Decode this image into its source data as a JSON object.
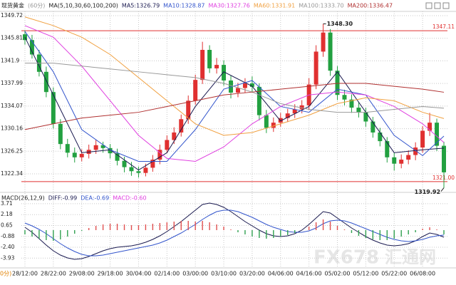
{
  "chart_data": [
    {
      "type": "candlestick",
      "title": "现货黄金",
      "subtitle": "(60分)",
      "indicator": "MA(5,10,30,60,100,200)",
      "categories": [
        "28/12:00",
        null,
        null,
        null,
        "28/22:00",
        null,
        null,
        null,
        "29/08:00",
        null,
        null,
        null,
        "29/18:00",
        null,
        null,
        null,
        "30/04:00",
        null,
        null,
        null,
        "02/14:00",
        null,
        null,
        null,
        "03/00:00",
        null,
        null,
        null,
        "03/10:00",
        null,
        null,
        null,
        "03/20:00",
        null,
        null,
        null,
        "04/06:00",
        null,
        null,
        null,
        "04/16:00",
        null,
        null,
        null,
        "05/02:00",
        null,
        null,
        null,
        "05/12:00",
        null,
        null,
        null,
        "05/22:00",
        null,
        null,
        null,
        "06/08:00",
        null,
        null,
        null
      ],
      "open": [
        1346.5,
        1345.5,
        1343.0,
        1340.0,
        1336.5,
        1331.0,
        1327.5,
        1326.0,
        1325.2,
        1325.8,
        1326.5,
        1327.3,
        1326.8,
        1325.9,
        1324.6,
        1323.5,
        1322.8,
        1322.5,
        1323.4,
        1324.8,
        1326.5,
        1328.2,
        1329.5,
        1331.8,
        1335.0,
        1338.6,
        1343.8,
        1340.6,
        1341.2,
        1338.5,
        1336.4,
        1337.2,
        1338.0,
        1337.4,
        1332.5,
        1330.3,
        1331.2,
        1332.0,
        1332.8,
        1333.5,
        1334.2,
        1337.8,
        1343.5,
        1346.8,
        1340.2,
        1336.0,
        1335.2,
        1333.8,
        1333.0,
        1331.4,
        1329.5,
        1328.0,
        1325.2,
        1324.1,
        1324.8,
        1325.6,
        1326.9,
        1329.8,
        1331.2,
        1327.2
      ],
      "high": [
        1347.2,
        1346.4,
        1343.8,
        1340.9,
        1337.3,
        1331.8,
        1328.4,
        1326.9,
        1326.6,
        1327.4,
        1328.2,
        1327.9,
        1327.5,
        1326.7,
        1325.3,
        1324.4,
        1323.6,
        1324.1,
        1325.6,
        1327.4,
        1329.0,
        1330.4,
        1332.6,
        1335.9,
        1339.5,
        1345.2,
        1344.6,
        1342.4,
        1342.0,
        1339.3,
        1338.1,
        1338.9,
        1339.2,
        1338.0,
        1333.4,
        1332.1,
        1332.9,
        1333.6,
        1334.4,
        1335.1,
        1338.9,
        1344.6,
        1348.3,
        1347.4,
        1341.0,
        1336.9,
        1336.1,
        1334.7,
        1333.8,
        1332.2,
        1330.3,
        1328.7,
        1326.0,
        1325.7,
        1326.4,
        1327.8,
        1330.6,
        1332.9,
        1331.9,
        1327.9
      ],
      "low": [
        1344.7,
        1342.3,
        1339.2,
        1335.6,
        1330.2,
        1326.6,
        1325.2,
        1324.3,
        1324.5,
        1325.0,
        1325.8,
        1326.0,
        1325.0,
        1323.8,
        1322.6,
        1322.0,
        1321.7,
        1321.9,
        1322.7,
        1324.0,
        1325.9,
        1327.5,
        1328.8,
        1331.0,
        1334.3,
        1337.9,
        1339.8,
        1339.7,
        1337.6,
        1335.4,
        1335.6,
        1336.4,
        1336.5,
        1331.6,
        1329.4,
        1329.6,
        1330.5,
        1331.3,
        1332.0,
        1332.8,
        1333.4,
        1337.0,
        1342.6,
        1339.3,
        1335.1,
        1334.2,
        1332.9,
        1332.1,
        1330.5,
        1328.6,
        1327.1,
        1324.3,
        1322.9,
        1323.3,
        1324.0,
        1324.7,
        1326.0,
        1328.9,
        1326.3,
        1319.92
      ],
      "close": [
        1345.5,
        1343.0,
        1340.0,
        1336.5,
        1331.0,
        1327.5,
        1326.0,
        1325.2,
        1325.8,
        1326.5,
        1327.3,
        1326.8,
        1325.9,
        1324.6,
        1323.5,
        1322.8,
        1322.5,
        1323.4,
        1324.8,
        1326.5,
        1328.2,
        1329.5,
        1331.8,
        1335.0,
        1338.6,
        1343.8,
        1340.6,
        1341.2,
        1338.5,
        1336.4,
        1337.2,
        1338.0,
        1337.4,
        1332.5,
        1330.3,
        1331.2,
        1332.0,
        1332.8,
        1333.5,
        1334.2,
        1337.8,
        1343.5,
        1346.8,
        1340.2,
        1336.0,
        1335.2,
        1333.8,
        1333.0,
        1331.4,
        1329.5,
        1328.0,
        1325.2,
        1324.1,
        1324.8,
        1325.6,
        1326.9,
        1329.8,
        1331.2,
        1327.2,
        1322.6
      ],
      "up_color": "#e03030",
      "down_color": "#22a040",
      "series": [
        {
          "name": "MA5:1326.79",
          "color": "#1a1a50",
          "x": [
            0,
            4,
            8,
            12,
            16,
            20,
            24,
            28,
            32,
            36,
            40,
            44,
            48,
            52,
            56,
            59
          ],
          "values": [
            1346,
            1336,
            1326,
            1326.5,
            1323,
            1326,
            1334,
            1340,
            1337.5,
            1331.5,
            1334,
            1340,
            1333,
            1326,
            1326.5,
            1326.79
          ]
        },
        {
          "name": "MA10:1328.87",
          "color": "#3355cc",
          "x": [
            0,
            4,
            8,
            12,
            16,
            20,
            24,
            28,
            32,
            36,
            40,
            44,
            48,
            52,
            56,
            59
          ],
          "values": [
            1347,
            1340,
            1330,
            1326.5,
            1324.5,
            1324.5,
            1330,
            1337,
            1338.5,
            1334,
            1333,
            1337,
            1336,
            1329,
            1325.5,
            1328.87
          ]
        },
        {
          "name": "MA30:1327.76",
          "color": "#e040e0",
          "x": [
            0,
            4,
            8,
            12,
            16,
            20,
            24,
            28,
            32,
            36,
            40,
            44,
            48,
            52,
            56,
            59
          ],
          "values": [
            1348,
            1346,
            1341,
            1335,
            1329,
            1325,
            1324.5,
            1327,
            1331,
            1334,
            1336,
            1336.5,
            1336,
            1334,
            1331,
            1327.76
          ]
        },
        {
          "name": "MA60:1331.91",
          "color": "#f0a040",
          "x": [
            0,
            4,
            8,
            12,
            16,
            20,
            24,
            28,
            32,
            36,
            40,
            44,
            48,
            52,
            56,
            59
          ],
          "values": [
            1349.5,
            1348,
            1346,
            1343,
            1339,
            1335,
            1331,
            1329,
            1329.5,
            1331,
            1332.5,
            1334.5,
            1335.5,
            1335,
            1333,
            1331.91
          ]
        },
        {
          "name": "MA100:1333.70",
          "color": "#999999",
          "x": [
            0,
            4,
            8,
            12,
            16,
            20,
            24,
            28,
            32,
            36,
            40,
            44,
            48,
            52,
            56,
            59
          ],
          "values": [
            1341.5,
            1341.5,
            1341,
            1340.5,
            1340,
            1339.5,
            1339,
            1338,
            1336.5,
            1334.5,
            1333.5,
            1333,
            1333,
            1333.5,
            1334,
            1333.7
          ]
        },
        {
          "name": "MA200:1336.47",
          "color": "#b03030",
          "x": [
            0,
            4,
            8,
            12,
            16,
            20,
            24,
            28,
            32,
            36,
            40,
            44,
            48,
            52,
            56,
            59
          ],
          "values": [
            1330,
            1331,
            1332,
            1332.5,
            1333,
            1334,
            1335,
            1336,
            1336.5,
            1337,
            1337.5,
            1338,
            1338,
            1337.5,
            1337,
            1336.47
          ]
        }
      ],
      "ylim": [
        1320.86,
        1350.46
      ],
      "yticks": [
        1349.72,
        1345.81,
        1341.9,
        1337.99,
        1334.07,
        1330.16,
        1326.25,
        1322.34
      ],
      "annotations": [
        {
          "x": 42,
          "value": 1348.3,
          "label": "1348.30"
        },
        {
          "x": 59,
          "value": 1319.92,
          "label": "1319.92"
        }
      ],
      "hlines": [
        {
          "value": 1347.11,
          "label": "1347.11",
          "color": "#e03030"
        },
        {
          "value": 1321,
          "label": "1321.00",
          "color": "#e03030"
        }
      ],
      "grid": true
    },
    {
      "type": "macd",
      "title": "MACD(26,12,9)",
      "series": [
        {
          "name": "DIFF:-0.99",
          "color": "#1a1a50",
          "type": "line",
          "values": [
            0.4,
            -0.3,
            -1.2,
            -2.1,
            -2.9,
            -3.5,
            -3.9,
            -4.1,
            -4.0,
            -3.7,
            -3.3,
            -2.9,
            -2.6,
            -2.4,
            -2.3,
            -2.2,
            -2.0,
            -1.7,
            -1.3,
            -0.8,
            -0.2,
            0.5,
            1.2,
            2.0,
            2.8,
            3.6,
            3.8,
            3.6,
            3.2,
            2.6,
            1.9,
            1.2,
            0.6,
            0.0,
            -0.5,
            -0.8,
            -0.9,
            -0.8,
            -0.5,
            0.0,
            0.8,
            1.7,
            2.6,
            2.4,
            1.7,
            1.0,
            0.3,
            -0.3,
            -0.9,
            -1.4,
            -1.8,
            -2.1,
            -2.2,
            -2.1,
            -1.9,
            -1.5,
            -0.9,
            -0.4,
            -0.6,
            -0.99
          ]
        },
        {
          "name": "DEA:-0.69",
          "color": "#3355cc",
          "type": "line",
          "values": [
            1.0,
            0.6,
            0.1,
            -0.5,
            -1.2,
            -1.9,
            -2.5,
            -3.0,
            -3.4,
            -3.6,
            -3.6,
            -3.5,
            -3.3,
            -3.1,
            -2.9,
            -2.7,
            -2.5,
            -2.3,
            -2.1,
            -1.8,
            -1.4,
            -0.9,
            -0.4,
            0.2,
            0.8,
            1.5,
            2.1,
            2.6,
            2.8,
            2.8,
            2.6,
            2.2,
            1.8,
            1.3,
            0.8,
            0.4,
            0.1,
            -0.2,
            -0.3,
            -0.3,
            -0.1,
            0.3,
            0.9,
            1.3,
            1.4,
            1.3,
            1.0,
            0.6,
            0.2,
            -0.2,
            -0.6,
            -1.0,
            -1.3,
            -1.5,
            -1.6,
            -1.5,
            -1.3,
            -1.0,
            -0.8,
            -0.69
          ]
        },
        {
          "name": "MACD:-0.60",
          "color": "#e040e0",
          "type": "bar",
          "up_color": "#e05050",
          "down_color": "#30a050",
          "values": [
            -0.6,
            -0.9,
            -1.2,
            -1.4,
            -1.5,
            -1.3,
            -0.9,
            -0.5,
            -0.1,
            0.3,
            0.6,
            0.8,
            0.9,
            0.9,
            0.8,
            0.7,
            0.7,
            0.8,
            0.9,
            1.0,
            1.1,
            1.2,
            1.3,
            1.3,
            1.2,
            1.3,
            1.1,
            0.8,
            0.5,
            0.1,
            -0.3,
            -0.6,
            -0.9,
            -1.1,
            -1.2,
            -1.1,
            -0.9,
            -0.7,
            -0.4,
            0.0,
            0.5,
            1.1,
            1.5,
            1.2,
            0.6,
            0.1,
            -0.4,
            -0.8,
            -1.1,
            -1.3,
            -1.4,
            -1.4,
            -1.2,
            -0.9,
            -0.6,
            -0.3,
            0.2,
            0.4,
            0.1,
            -0.6
          ]
        }
      ],
      "ylim": [
        -5.2,
        5.1
      ],
      "yticks": [
        3.71,
        2.18,
        0.65,
        -0.88,
        {
          "value": -2.4,
          "label": "-2.40"
        },
        -3.93
      ]
    }
  ],
  "watermark": {
    "logo": "FX678",
    "name": "汇通网"
  },
  "period_fragment": "0分)"
}
